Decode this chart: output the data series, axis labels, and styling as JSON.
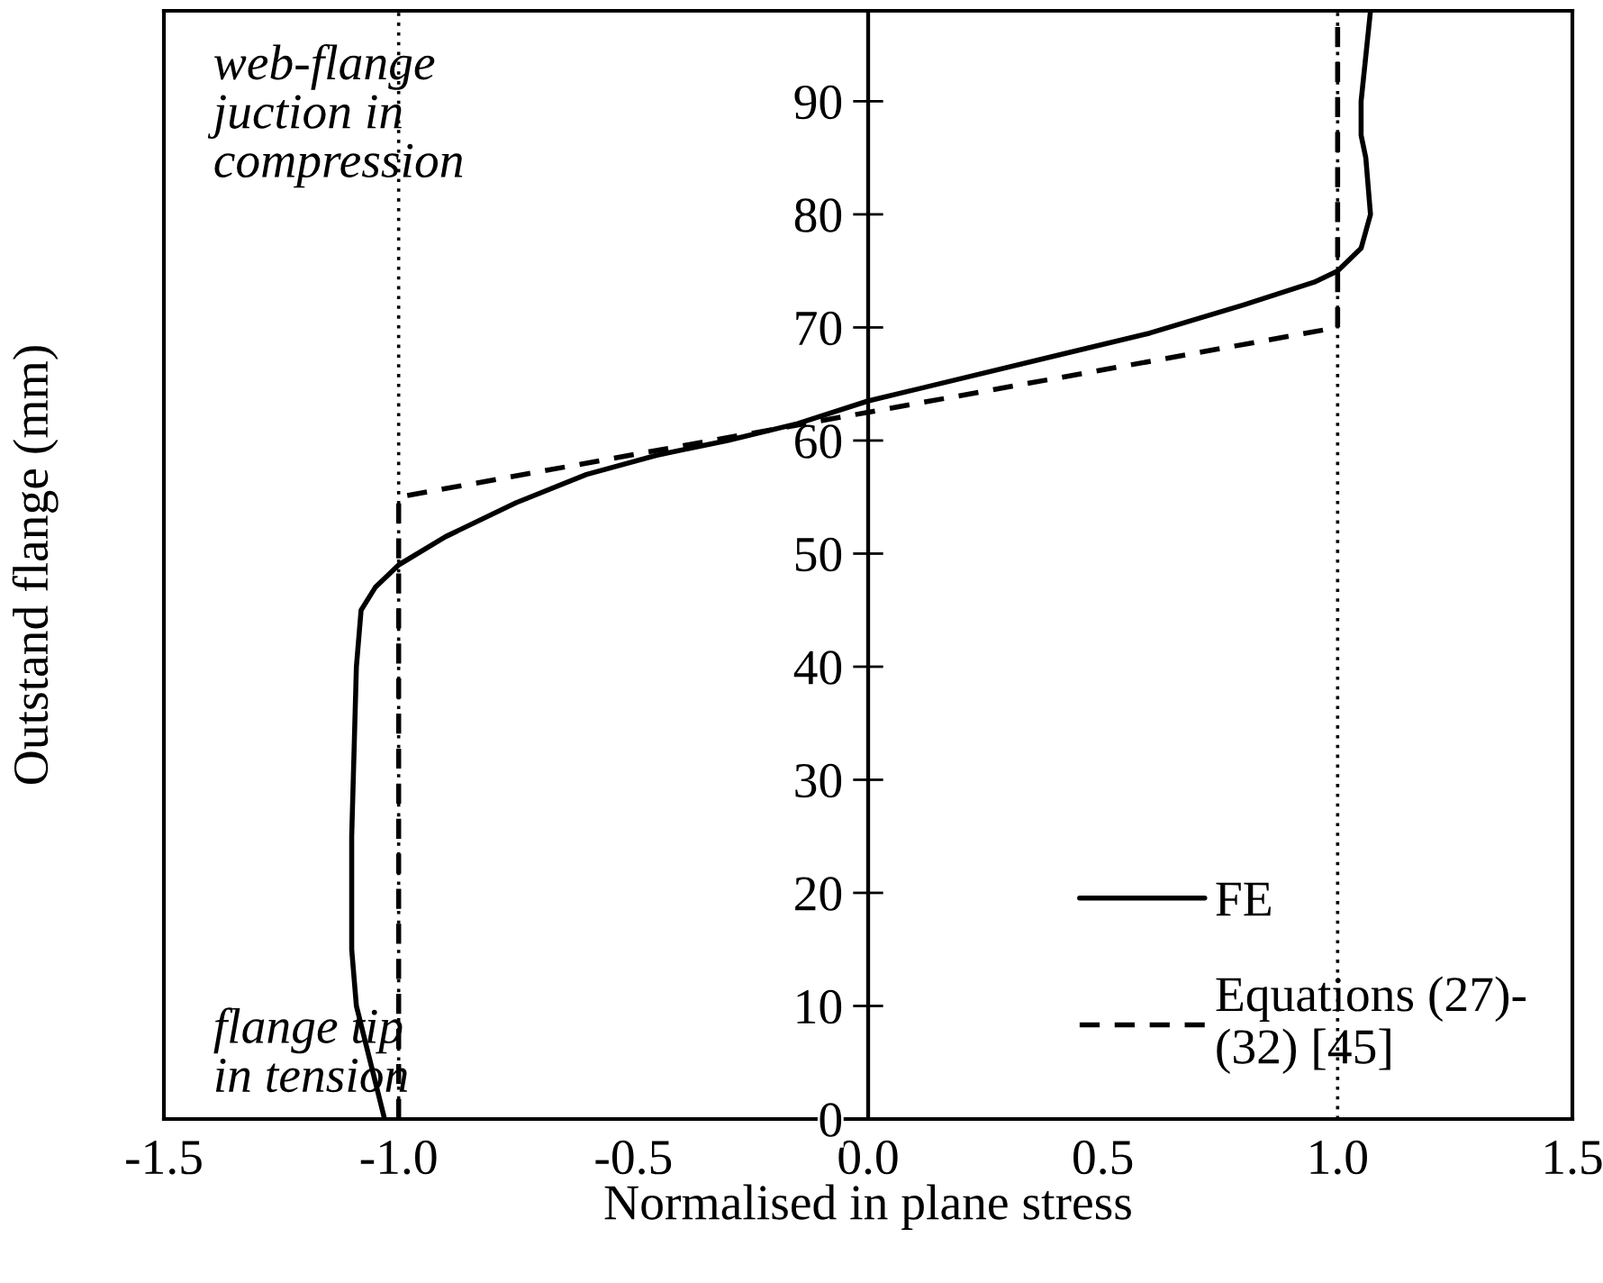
{
  "chart_data": {
    "type": "line",
    "xlabel": "Normalised in plane stress",
    "ylabel": "Outstand flange (mm)",
    "xlim": [
      -1.5,
      1.5
    ],
    "xticks": [
      {
        "value": -1.5,
        "label": "-1.5"
      },
      {
        "value": -1.0,
        "label": "-1.0"
      },
      {
        "value": -0.5,
        "label": "-0.5"
      },
      {
        "value": 0.0,
        "label": "0.0"
      },
      {
        "value": 0.5,
        "label": "0.5"
      },
      {
        "value": 1.0,
        "label": "1.0"
      },
      {
        "value": 1.5,
        "label": "1.5"
      }
    ],
    "ylim": [
      0,
      98
    ],
    "yticks": [
      0,
      10,
      20,
      30,
      40,
      50,
      60,
      70,
      80,
      90
    ],
    "series": [
      {
        "name": "FE",
        "color": "#000000",
        "line_style": "solid",
        "x": [
          -1.03,
          -1.06,
          -1.09,
          -1.1,
          -1.1,
          -1.09,
          -1.08,
          -1.05,
          -1.0,
          -0.9,
          -0.75,
          -0.6,
          -0.45,
          -0.3,
          -0.15,
          0.0,
          0.2,
          0.4,
          0.6,
          0.8,
          0.95,
          1.0,
          1.05,
          1.07,
          1.06,
          1.05,
          1.05,
          1.07
        ],
        "values": [
          0,
          5,
          10,
          15,
          25,
          40,
          45,
          47,
          49,
          51.5,
          54.5,
          57,
          58.7,
          60,
          61.5,
          63.5,
          65.5,
          67.5,
          69.5,
          72,
          74,
          75,
          77,
          80,
          85,
          87,
          90,
          98
        ]
      },
      {
        "name": "Equations (27)-\n(32) [45]",
        "color": "#000000",
        "line_style": "dashed",
        "x": [
          -1.0,
          -1.0,
          1.0,
          1.0
        ],
        "values": [
          0,
          55,
          70,
          98
        ]
      }
    ],
    "ref_lines": [
      {
        "axis": "x",
        "value": -1.0,
        "line_style": "dotted",
        "color": "#000000"
      },
      {
        "axis": "x",
        "value": 1.0,
        "line_style": "dotted",
        "color": "#000000"
      }
    ],
    "annotations": [
      "web-flange\njuction in\ncompression",
      "flange tip\nin tension"
    ],
    "legend": "bottom right",
    "grid": false,
    "marker": "none"
  }
}
